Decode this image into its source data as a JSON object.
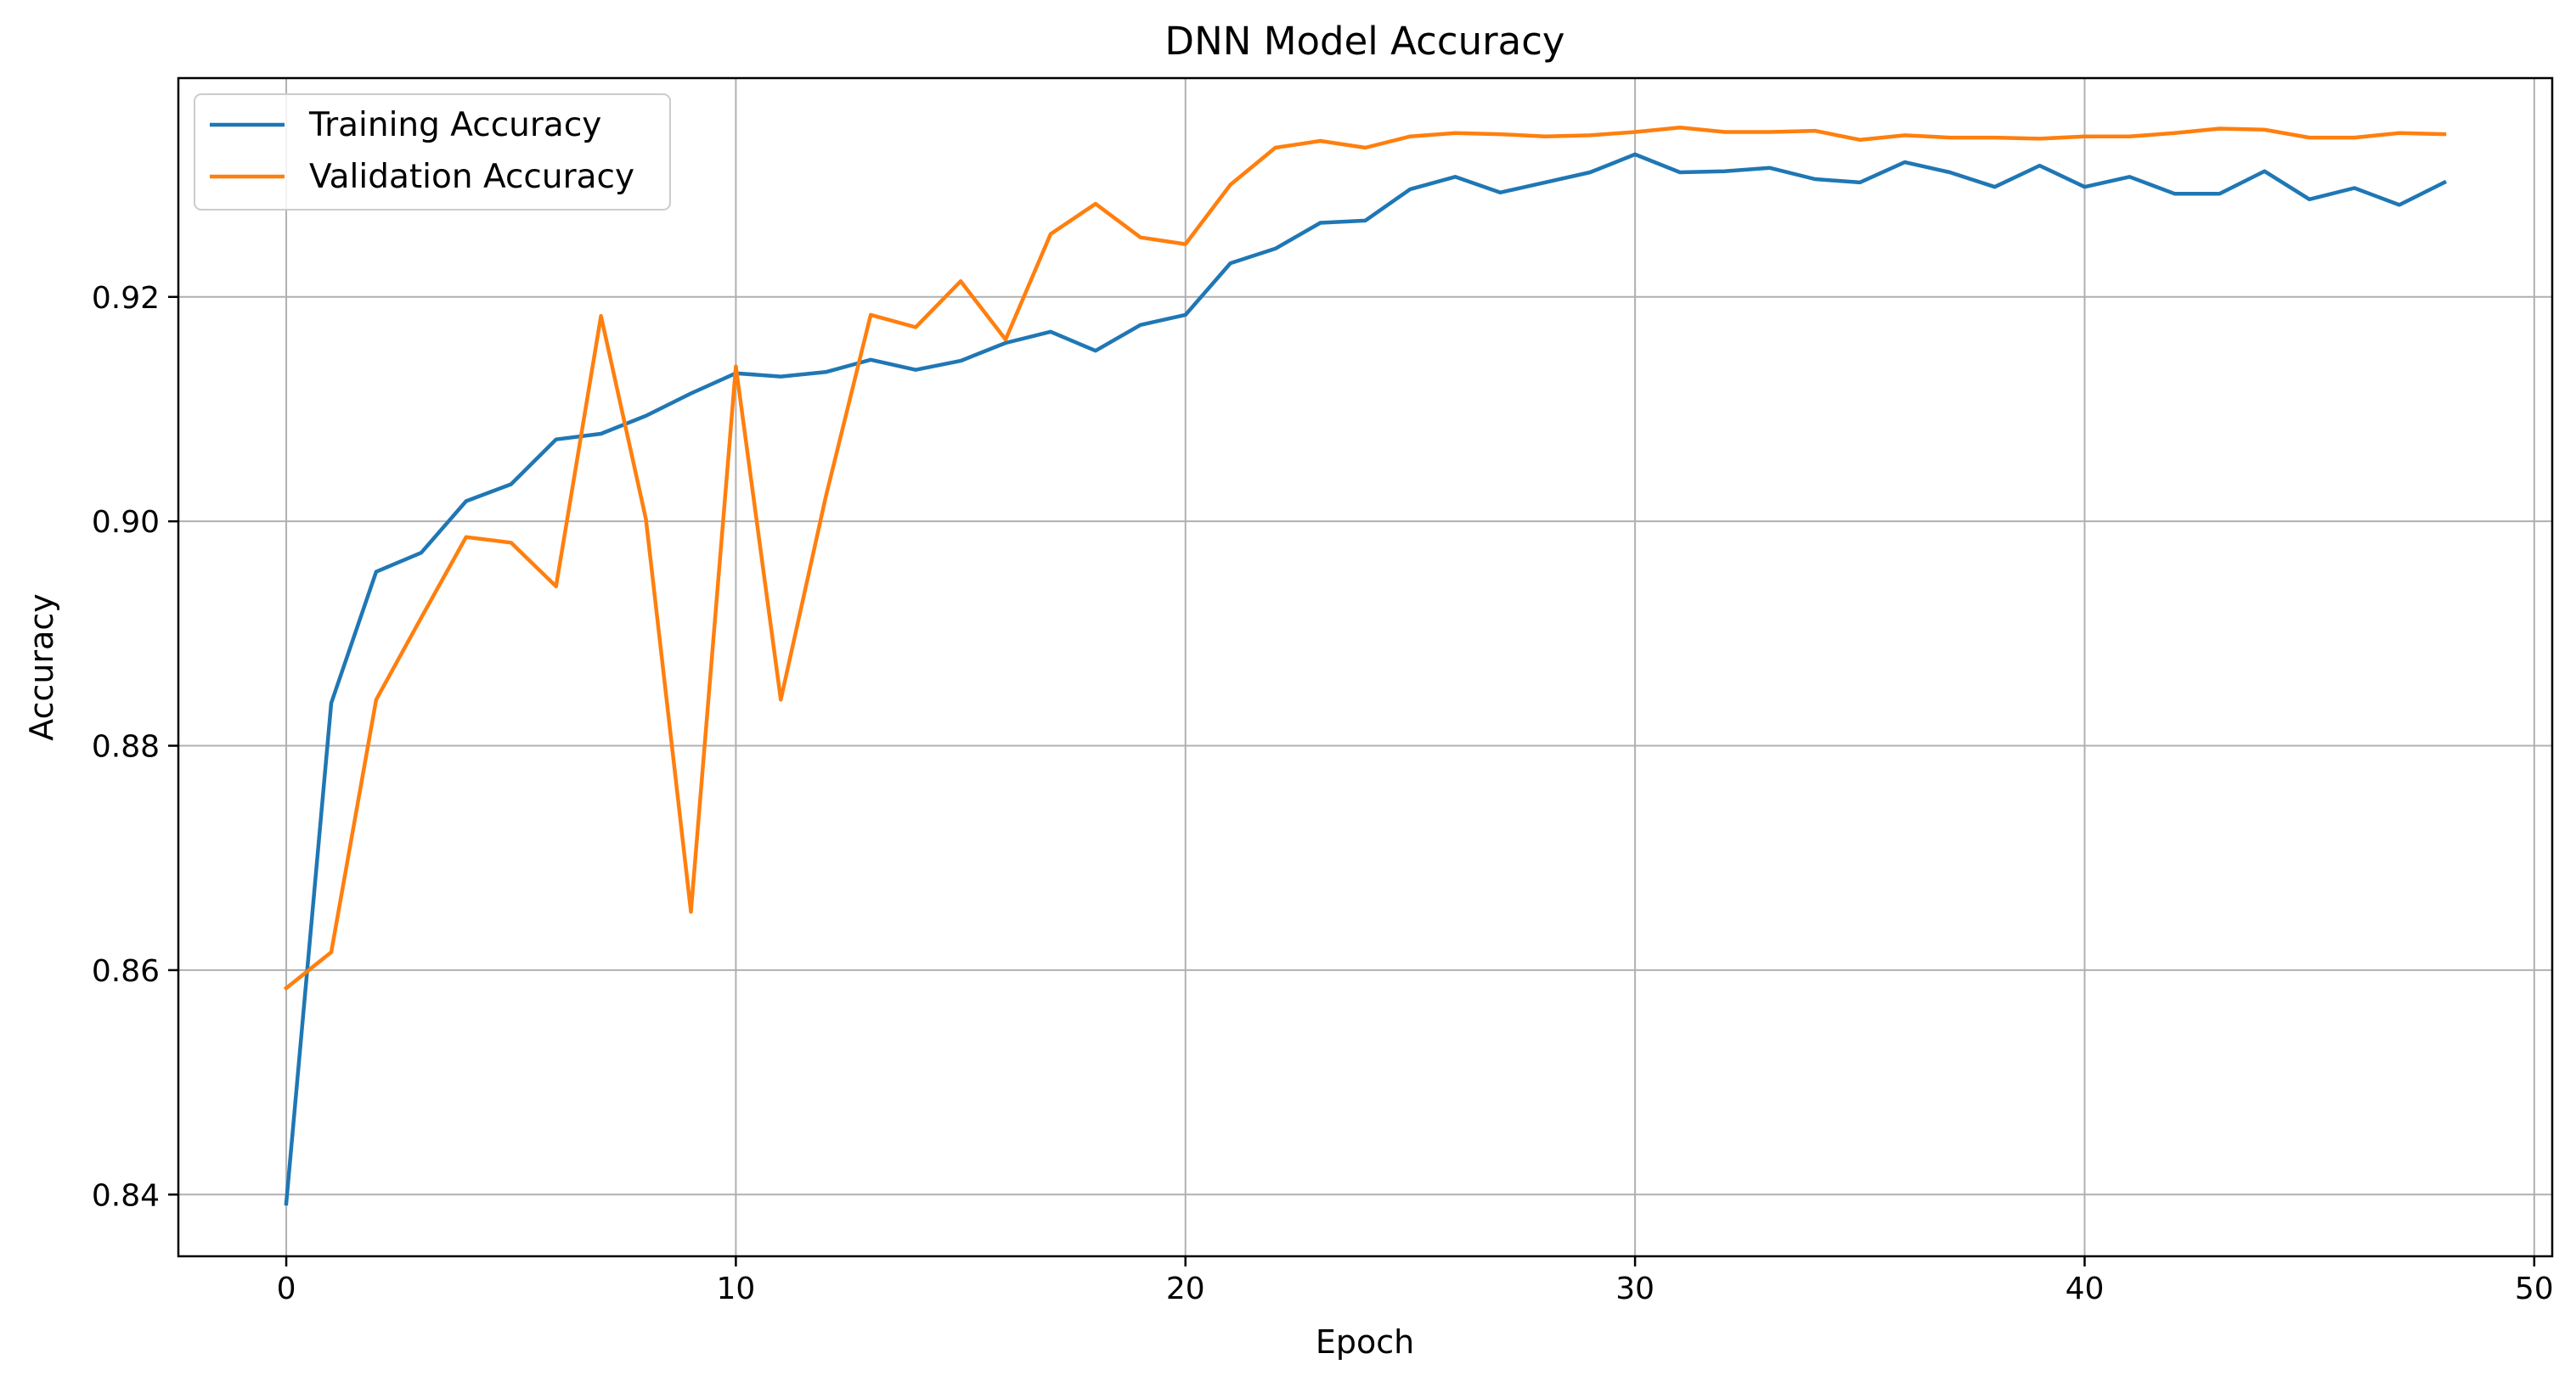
{
  "chart_data": {
    "type": "line",
    "title": "DNN Model Accuracy",
    "xlabel": "Epoch",
    "ylabel": "Accuracy",
    "xlim": [
      -2.4,
      50.4
    ],
    "ylim": [
      0.8345,
      0.9395
    ],
    "xticks": [
      0,
      10,
      20,
      30,
      40,
      50
    ],
    "yticks": [
      0.84,
      0.86,
      0.88,
      0.9,
      0.92
    ],
    "ytick_labels": [
      "0.84",
      "0.86",
      "0.88",
      "0.90",
      "0.92"
    ],
    "grid": true,
    "legend_position": "upper left",
    "x": [
      0,
      1,
      2,
      3,
      4,
      5,
      6,
      7,
      8,
      9,
      10,
      11,
      12,
      13,
      14,
      15,
      16,
      17,
      18,
      19,
      20,
      21,
      22,
      23,
      24,
      25,
      26,
      27,
      28,
      29,
      30,
      31,
      32,
      33,
      34,
      35,
      36,
      37,
      38,
      39,
      40,
      41,
      42,
      43,
      44,
      45,
      46,
      47,
      48
    ],
    "series": [
      {
        "name": "Training Accuracy",
        "color": "#1f77b4",
        "values": [
          0.8392,
          0.8838,
          0.8955,
          0.8972,
          0.9018,
          0.9033,
          0.9073,
          0.9078,
          0.9094,
          0.9114,
          0.9132,
          0.9129,
          0.9133,
          0.9144,
          0.9135,
          0.9143,
          0.9159,
          0.9169,
          0.9152,
          0.9175,
          0.9184,
          0.923,
          0.9243,
          0.9266,
          0.9268,
          0.9296,
          0.9307,
          0.9293,
          0.9302,
          0.9311,
          0.9327,
          0.9311,
          0.9312,
          0.9315,
          0.9305,
          0.9302,
          0.932,
          0.9311,
          0.9298,
          0.9317,
          0.9298,
          0.9307,
          0.9292,
          0.9292,
          0.9312,
          0.9287,
          0.9297,
          0.9282,
          0.9302
        ]
      },
      {
        "name": "Validation Accuracy",
        "color": "#ff7f0e",
        "values": [
          0.8584,
          0.8616,
          0.8841,
          0.8914,
          0.8986,
          0.8981,
          0.8942,
          0.9183,
          0.9002,
          0.8652,
          0.9138,
          0.8841,
          0.9022,
          0.9184,
          0.9173,
          0.9214,
          0.9162,
          0.9256,
          0.9283,
          0.9253,
          0.9247,
          0.93,
          0.9333,
          0.9339,
          0.9333,
          0.9343,
          0.9346,
          0.9345,
          0.9343,
          0.9344,
          0.9347,
          0.9351,
          0.9347,
          0.9347,
          0.9348,
          0.934,
          0.9344,
          0.9342,
          0.9342,
          0.9341,
          0.9343,
          0.9343,
          0.9346,
          0.935,
          0.9349,
          0.9342,
          0.9342,
          0.9346,
          0.9345
        ]
      }
    ]
  }
}
